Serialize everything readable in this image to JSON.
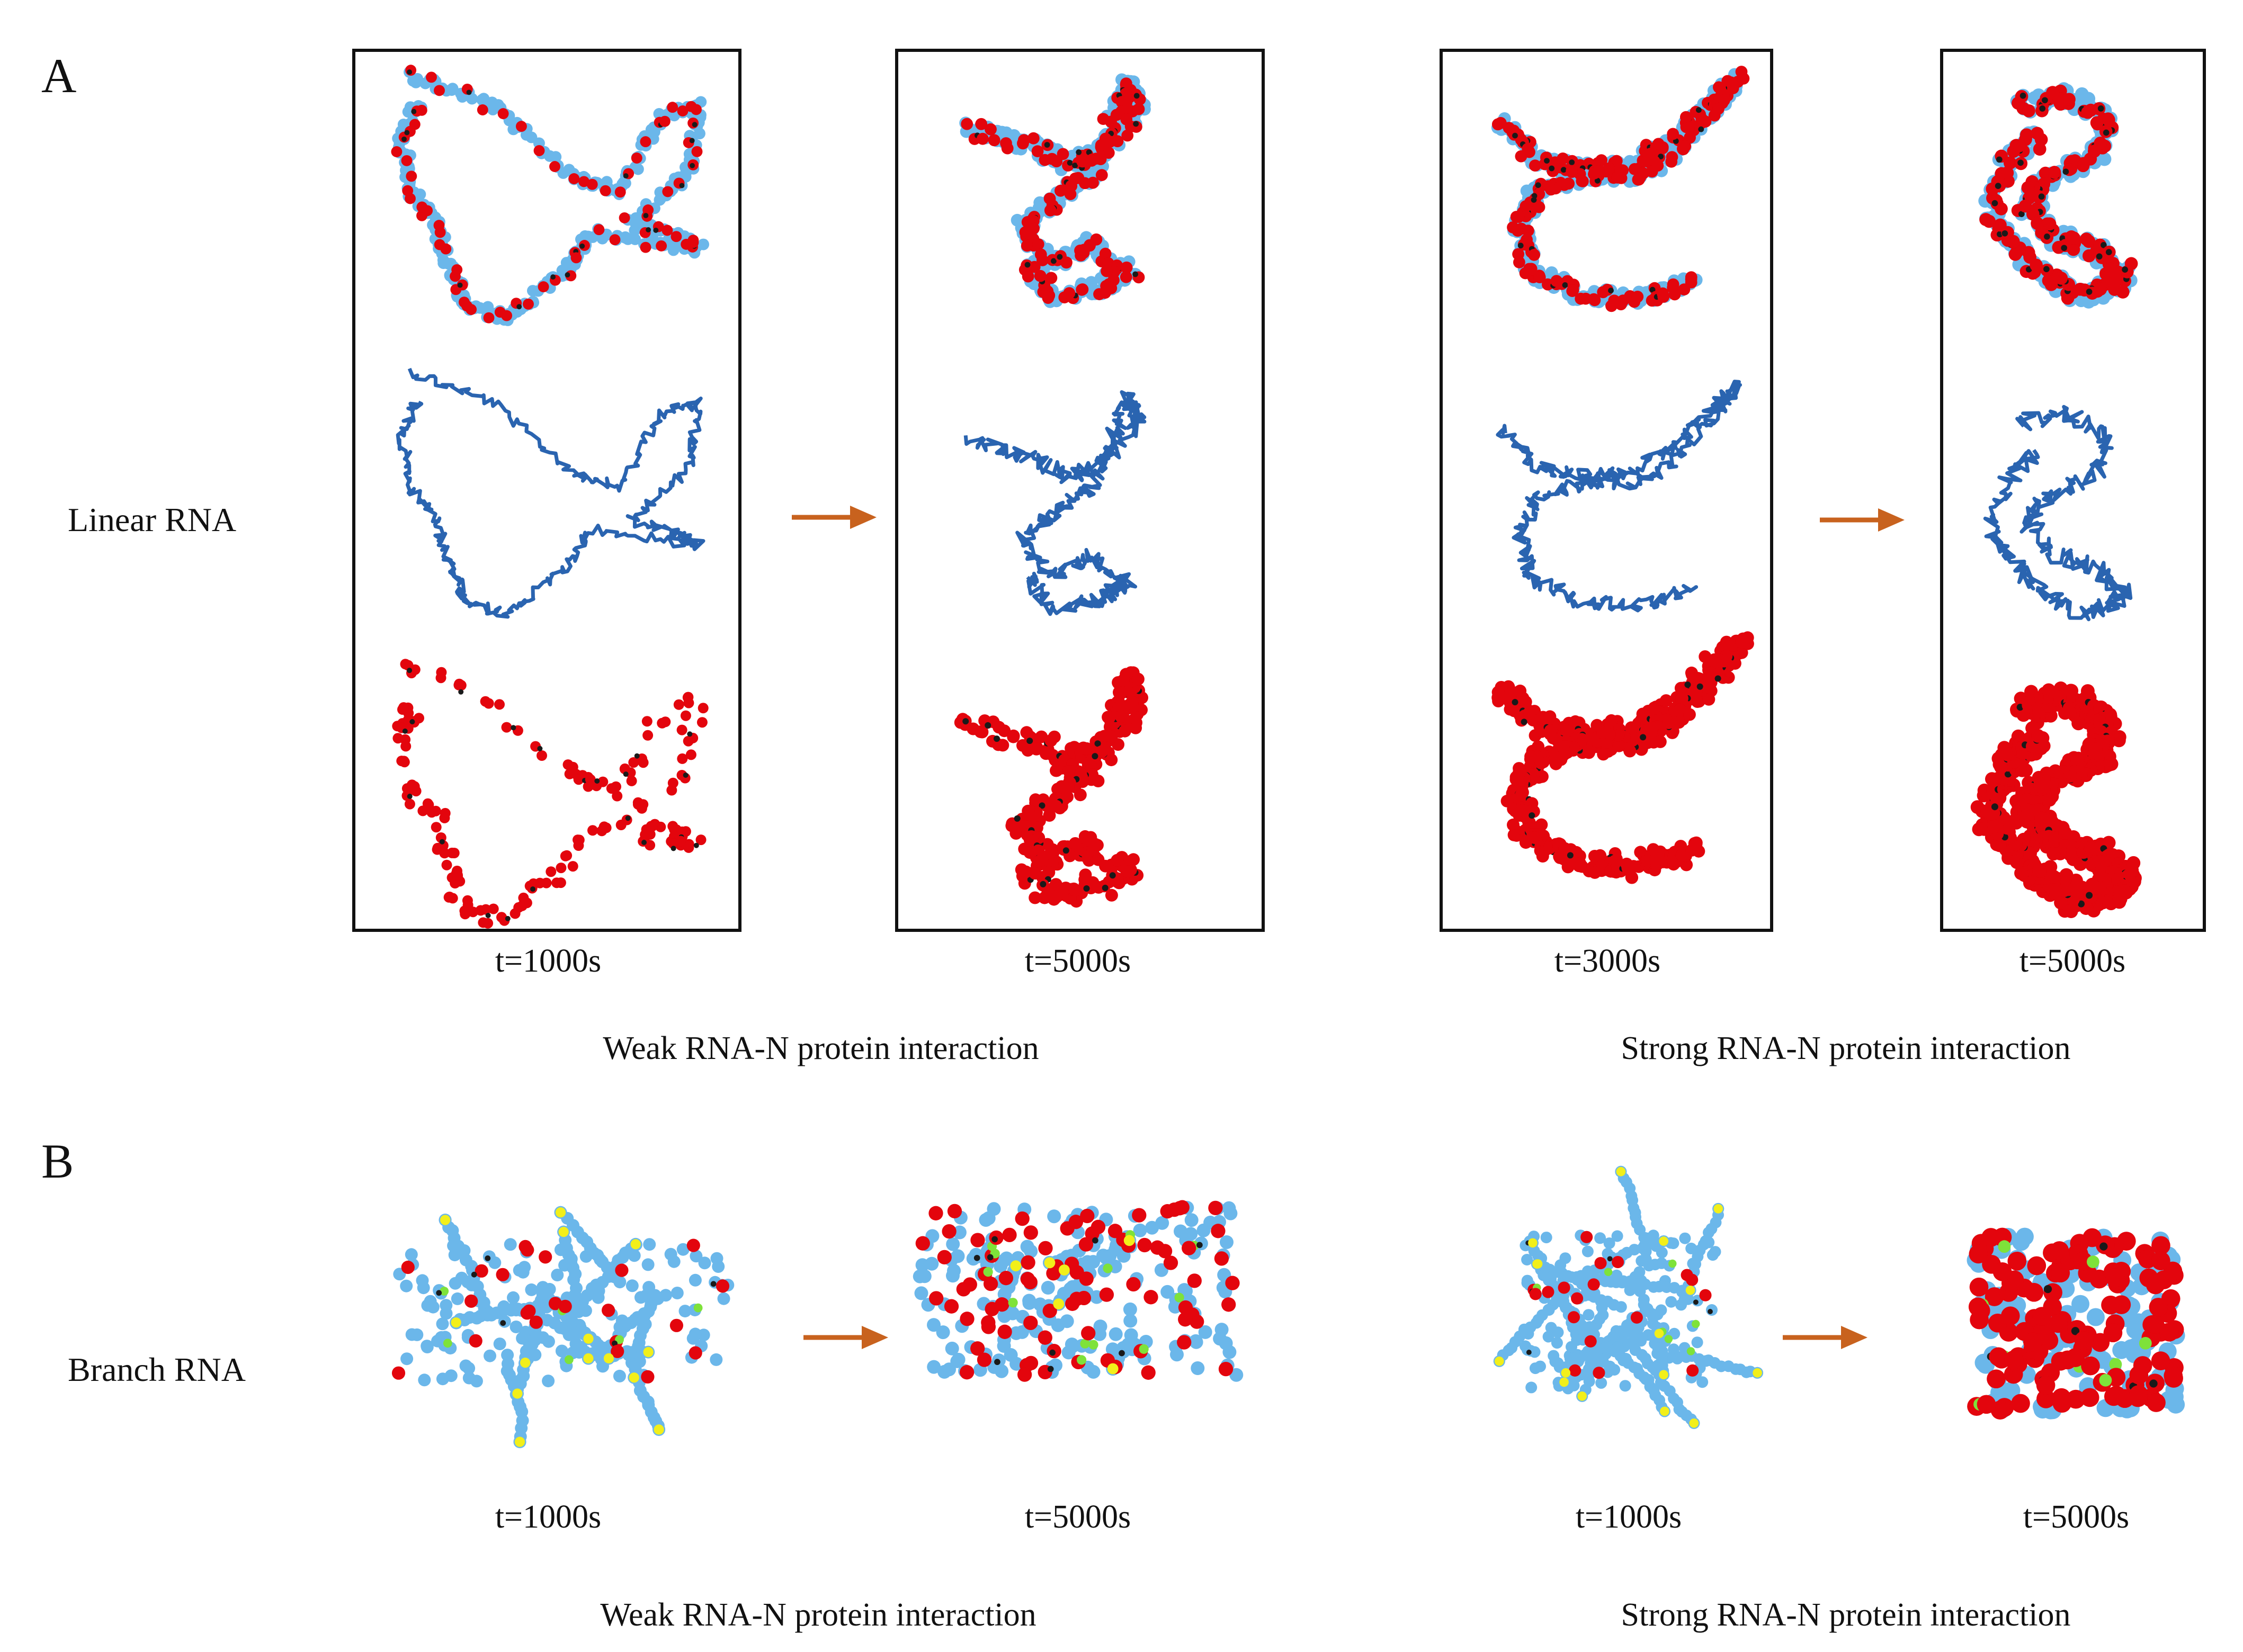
{
  "figure": {
    "panel_a": {
      "letter": "A",
      "row_label": "Linear RNA",
      "times": [
        "t=1000s",
        "t=5000s",
        "t=3000s",
        "t=5000s"
      ],
      "caption_weak": "Weak RNA-N protein interaction",
      "caption_strong": "Strong RNA-N protein interaction",
      "row_views": [
        "RNA + N protein",
        "RNA chain",
        "N protein"
      ]
    },
    "panel_b": {
      "letter": "B",
      "row_label": "Branch RNA",
      "times": [
        "t=1000s",
        "t=5000s",
        "t=1000s",
        "t=5000s"
      ],
      "caption_weak": "Weak RNA-N protein interaction",
      "caption_strong": "Strong RNA-N protein interaction"
    }
  },
  "colors": {
    "rna_bead": "#6bb7ea",
    "rna_chain": "#2a64b0",
    "protein_bead": "#e3050d",
    "protein_core": "#1a1a1a",
    "branch_end": "#f2ef1a",
    "branch_node": "#7ee23a",
    "arrow": "#c8621e"
  }
}
